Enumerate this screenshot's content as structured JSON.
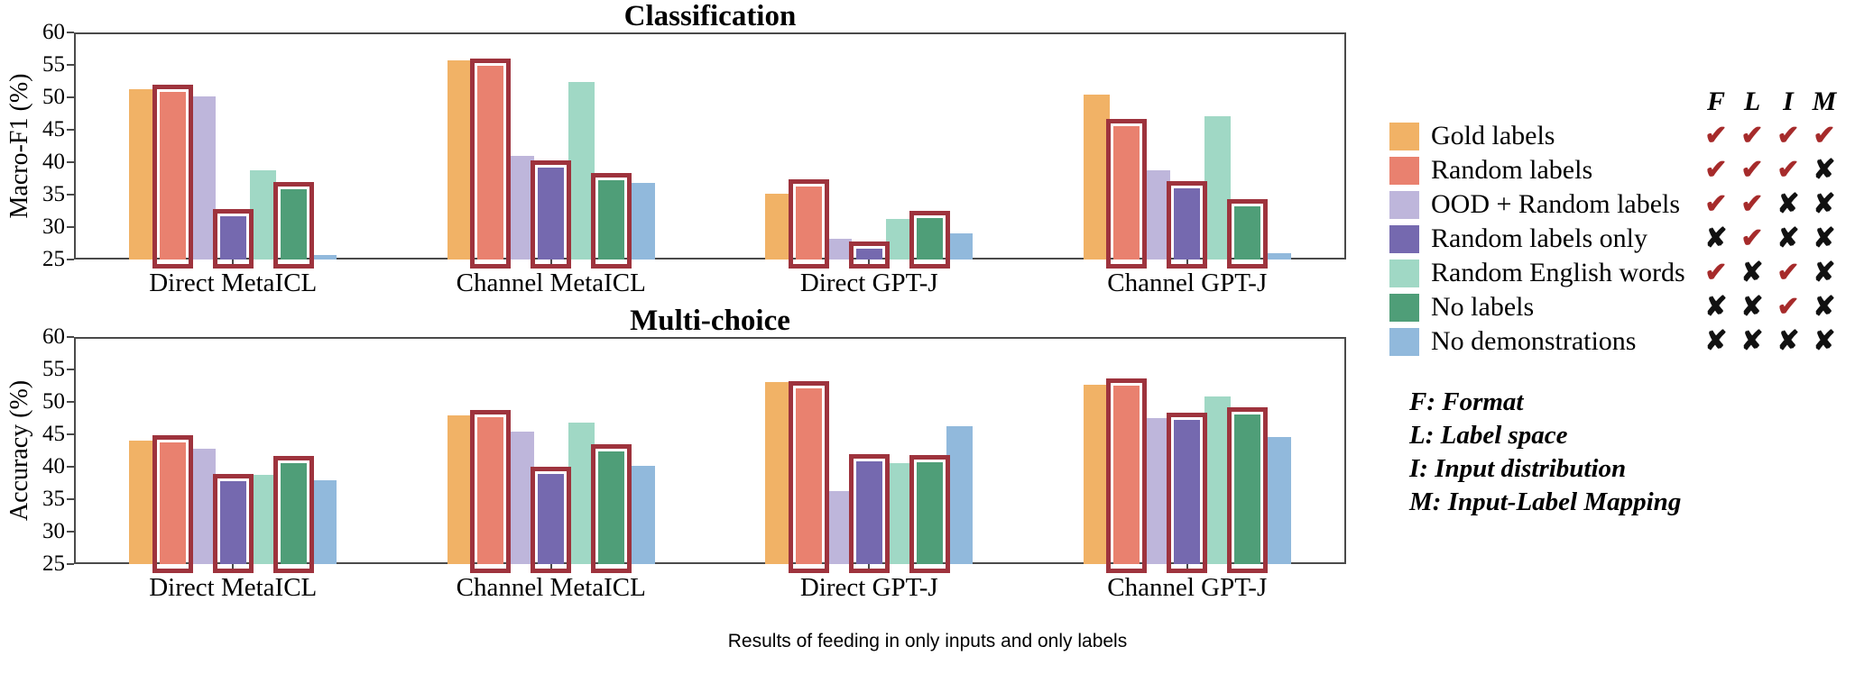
{
  "figure": {
    "caption": "Results of feeding in only inputs and only labels",
    "colors": {
      "gold": "#F1B266",
      "salmon": "#E9816F",
      "ood_purple": "#BEB6DB",
      "dark_purple": "#7569AF",
      "teal": "#A0D8C5",
      "green": "#4F9E78",
      "blue": "#91B9DC",
      "highlight_box_red": "#9E333D",
      "check_red": "#A62B2B",
      "x_black": "#111111",
      "frame_gray": "#4a4a4a"
    },
    "legend": {
      "header": [
        "F",
        "L",
        "I",
        "M"
      ],
      "items": [
        {
          "label": "Gold labels",
          "color": "#F1B266",
          "marks": [
            "check",
            "check",
            "check",
            "check"
          ]
        },
        {
          "label": "Random labels",
          "color": "#E9816F",
          "marks": [
            "check",
            "check",
            "check",
            "x"
          ]
        },
        {
          "label": "OOD + Random labels",
          "color": "#BEB6DB",
          "marks": [
            "check",
            "check",
            "x",
            "x"
          ]
        },
        {
          "label": "Random labels only",
          "color": "#7569AF",
          "marks": [
            "x",
            "check",
            "x",
            "x"
          ]
        },
        {
          "label": "Random English words",
          "color": "#A0D8C5",
          "marks": [
            "check",
            "x",
            "check",
            "x"
          ]
        },
        {
          "label": "No labels",
          "color": "#4F9E78",
          "marks": [
            "x",
            "x",
            "check",
            "x"
          ]
        },
        {
          "label": "No demonstrations",
          "color": "#91B9DC",
          "marks": [
            "x",
            "x",
            "x",
            "x"
          ]
        }
      ]
    },
    "footnotes": [
      "F: Format",
      "L: Label space",
      "I: Input distribution",
      "M: Input-Label Mapping"
    ],
    "check_glyph": "✔",
    "x_glyph": "✘"
  },
  "chart_data": [
    {
      "type": "bar",
      "title": "Classification",
      "ylabel": "Macro-F1 (%)",
      "ylim": [
        25,
        60
      ],
      "yticks": [
        60,
        55,
        50,
        45,
        40,
        35,
        30,
        25
      ],
      "grid": false,
      "legend_position": "outside-right",
      "categories": [
        "Direct MetaICL",
        "Channel MetaICL",
        "Direct GPT-J",
        "Channel GPT-J"
      ],
      "series": [
        {
          "name": "Gold labels",
          "values": [
            51.3,
            55.7,
            35.2,
            50.4
          ]
        },
        {
          "name": "Random labels",
          "values": [
            50.9,
            54.8,
            36.2,
            45.5
          ],
          "boxed": true
        },
        {
          "name": "OOD + Random labels",
          "values": [
            50.1,
            41.0,
            28.2,
            38.7
          ]
        },
        {
          "name": "Random labels only",
          "values": [
            31.6,
            39.2,
            26.6,
            36.0
          ],
          "boxed": true
        },
        {
          "name": "Random English words",
          "values": [
            38.7,
            52.3,
            31.2,
            47.1
          ]
        },
        {
          "name": "No labels",
          "values": [
            35.8,
            37.2,
            31.4,
            33.2
          ],
          "boxed": true
        },
        {
          "name": "No demonstrations",
          "values": [
            25.7,
            36.8,
            29.0,
            26.0
          ]
        }
      ],
      "highlight_boxes_on": [
        "Random labels",
        "Random labels only",
        "No labels"
      ]
    },
    {
      "type": "bar",
      "title": "Multi-choice",
      "ylabel": "Accuracy (%)",
      "ylim": [
        25,
        60
      ],
      "yticks": [
        60,
        55,
        50,
        45,
        40,
        35,
        30,
        25
      ],
      "grid": false,
      "legend_position": "outside-right",
      "categories": [
        "Direct MetaICL",
        "Channel MetaICL",
        "Direct GPT-J",
        "Channel GPT-J"
      ],
      "series": [
        {
          "name": "Gold labels",
          "values": [
            44.0,
            47.9,
            53.1,
            52.7
          ]
        },
        {
          "name": "Random labels",
          "values": [
            43.7,
            47.7,
            52.1,
            52.5
          ],
          "boxed": true
        },
        {
          "name": "OOD + Random labels",
          "values": [
            42.8,
            45.4,
            36.2,
            47.5
          ]
        },
        {
          "name": "Random labels only",
          "values": [
            37.8,
            38.9,
            40.9,
            47.2
          ],
          "boxed": true
        },
        {
          "name": "Random English words",
          "values": [
            38.7,
            46.8,
            40.6,
            50.8
          ]
        },
        {
          "name": "No labels",
          "values": [
            40.5,
            42.4,
            40.7,
            48.0
          ],
          "boxed": true
        },
        {
          "name": "No demonstrations",
          "values": [
            37.9,
            40.2,
            46.3,
            44.6
          ]
        }
      ],
      "highlight_boxes_on": [
        "Random labels",
        "Random labels only",
        "No labels"
      ]
    }
  ]
}
